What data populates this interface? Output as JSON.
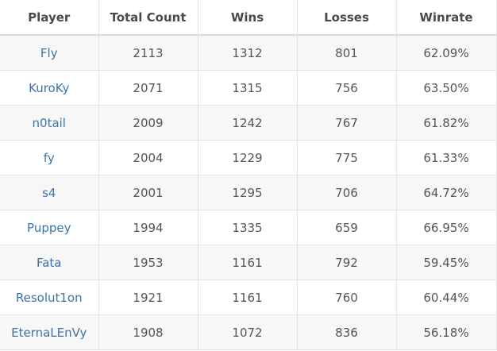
{
  "table": {
    "headers": [
      "Player",
      "Total Count",
      "Wins",
      "Losses",
      "Winrate"
    ],
    "rows": [
      {
        "player": "Fly",
        "total": "2113",
        "wins": "1312",
        "losses": "801",
        "winrate": "62.09%"
      },
      {
        "player": "KuroKy",
        "total": "2071",
        "wins": "1315",
        "losses": "756",
        "winrate": "63.50%"
      },
      {
        "player": "n0tail",
        "total": "2009",
        "wins": "1242",
        "losses": "767",
        "winrate": "61.82%"
      },
      {
        "player": "fy",
        "total": "2004",
        "wins": "1229",
        "losses": "775",
        "winrate": "61.33%"
      },
      {
        "player": "s4",
        "total": "2001",
        "wins": "1295",
        "losses": "706",
        "winrate": "64.72%"
      },
      {
        "player": "Puppey",
        "total": "1994",
        "wins": "1335",
        "losses": "659",
        "winrate": "66.95%"
      },
      {
        "player": "Fata",
        "total": "1953",
        "wins": "1161",
        "losses": "792",
        "winrate": "59.45%"
      },
      {
        "player": "Resolut1on",
        "total": "1921",
        "wins": "1161",
        "losses": "760",
        "winrate": "60.44%"
      },
      {
        "player": "EternaLEnVy",
        "total": "1908",
        "wins": "1072",
        "losses": "836",
        "winrate": "56.18%"
      }
    ]
  }
}
